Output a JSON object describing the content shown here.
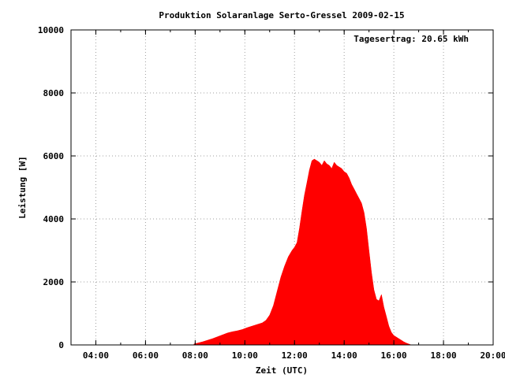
{
  "chart_data": {
    "type": "area",
    "title": "Produktion Solaranlage Serto-Gressel 2009-02-15",
    "xlabel": "Zeit (UTC)",
    "ylabel": "Leistung [W]",
    "annotation": "Tagesertrag: 20.65 kWh",
    "x_unit": "hours UTC",
    "xlim": [
      3.0,
      20.0
    ],
    "ylim": [
      0,
      10000
    ],
    "x_ticks": [
      {
        "value": 4,
        "label": "04:00"
      },
      {
        "value": 6,
        "label": "06:00"
      },
      {
        "value": 8,
        "label": "08:00"
      },
      {
        "value": 10,
        "label": "10:00"
      },
      {
        "value": 12,
        "label": "12:00"
      },
      {
        "value": 14,
        "label": "14:00"
      },
      {
        "value": 16,
        "label": "16:00"
      },
      {
        "value": 18,
        "label": "18:00"
      },
      {
        "value": 20,
        "label": "20:00"
      }
    ],
    "y_ticks": [
      {
        "value": 0,
        "label": "0"
      },
      {
        "value": 2000,
        "label": "2000"
      },
      {
        "value": 4000,
        "label": "4000"
      },
      {
        "value": 6000,
        "label": "6000"
      },
      {
        "value": 8000,
        "label": "8000"
      },
      {
        "value": 10000,
        "label": "10000"
      }
    ],
    "grid": true,
    "fill_color": "#ff0000",
    "series": [
      {
        "x": [
          7.95,
          8.1,
          8.3,
          8.5,
          8.7,
          8.9,
          9.1,
          9.3,
          9.5,
          9.7,
          9.9,
          10.1,
          10.3,
          10.5,
          10.7,
          10.85,
          11.0,
          11.15,
          11.3,
          11.45,
          11.6,
          11.75,
          11.9,
          12.0,
          12.1,
          12.2,
          12.3,
          12.4,
          12.5,
          12.6,
          12.7,
          12.8,
          12.9,
          13.0,
          13.1,
          13.2,
          13.3,
          13.4,
          13.5,
          13.6,
          13.7,
          13.8,
          13.9,
          14.0,
          14.1,
          14.2,
          14.3,
          14.4,
          14.5,
          14.6,
          14.7,
          14.8,
          14.9,
          15.0,
          15.1,
          15.2,
          15.3,
          15.4,
          15.5,
          15.6,
          15.7,
          15.8,
          15.9,
          16.0,
          16.1,
          16.2,
          16.3,
          16.4,
          16.5,
          16.6,
          16.7
        ],
        "y": [
          30,
          60,
          100,
          150,
          200,
          260,
          320,
          380,
          420,
          450,
          490,
          550,
          600,
          650,
          700,
          780,
          950,
          1250,
          1700,
          2150,
          2500,
          2800,
          3000,
          3100,
          3250,
          3700,
          4250,
          4750,
          5150,
          5550,
          5850,
          5900,
          5850,
          5800,
          5700,
          5850,
          5750,
          5700,
          5600,
          5800,
          5700,
          5650,
          5600,
          5500,
          5450,
          5300,
          5100,
          4950,
          4800,
          4650,
          4500,
          4200,
          3700,
          3000,
          2300,
          1750,
          1450,
          1400,
          1600,
          1200,
          900,
          600,
          400,
          300,
          250,
          200,
          150,
          100,
          60,
          30,
          0
        ]
      }
    ]
  }
}
